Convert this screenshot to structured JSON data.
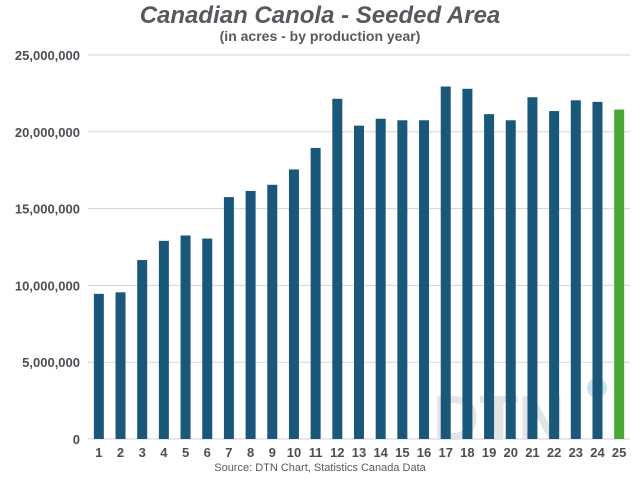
{
  "colors": {
    "bar": "#19587a",
    "highlight": "#4aa832",
    "grid": "#d0d3d6",
    "text": "#4a4f55",
    "watermark_text": "#e2e4e6",
    "watermark_dot": "#c9e3ef"
  },
  "watermark": {
    "text": "DTN"
  },
  "chart_data": {
    "type": "bar",
    "title": "Canadian Canola - Seeded Area",
    "subtitle": "(in acres - by production year)",
    "source": "Source: DTN Chart, Statistics Canada Data",
    "xlabel": "",
    "ylabel": "",
    "ylim": [
      0,
      25000000
    ],
    "yticks": [
      0,
      5000000,
      10000000,
      15000000,
      20000000,
      25000000
    ],
    "ytick_labels": [
      "0",
      "5,000,000",
      "10,000,000",
      "15,000,000",
      "20,000,000",
      "25,000,000"
    ],
    "grid": true,
    "legend": "none",
    "highlight_category": "25",
    "categories": [
      "1",
      "2",
      "3",
      "4",
      "5",
      "6",
      "7",
      "8",
      "9",
      "10",
      "11",
      "12",
      "13",
      "14",
      "15",
      "16",
      "17",
      "18",
      "19",
      "20",
      "21",
      "22",
      "23",
      "24",
      "25"
    ],
    "values": [
      9450000,
      9550000,
      11650000,
      12900000,
      13250000,
      13050000,
      15750000,
      16150000,
      16550000,
      17550000,
      18950000,
      22150000,
      20400000,
      20850000,
      20750000,
      20750000,
      22950000,
      22800000,
      21150000,
      20750000,
      22250000,
      21350000,
      22050000,
      21950000,
      21450000
    ]
  }
}
